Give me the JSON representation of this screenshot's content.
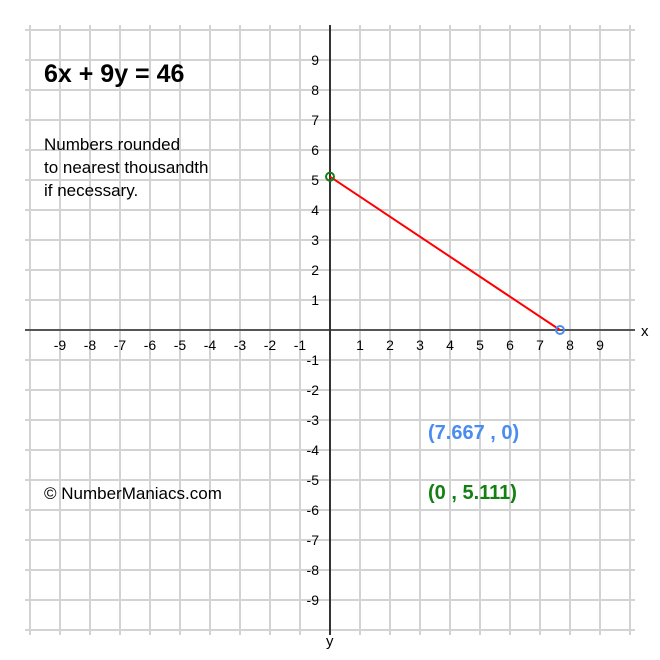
{
  "title": "6x + 9y = 46",
  "note_lines": [
    "Numbers rounded",
    "to nearest thousandth",
    "if necessary."
  ],
  "copyright": "© NumberManiacs.com",
  "chart_data": {
    "type": "line",
    "title": "6x + 9y = 46",
    "xlabel": "x",
    "ylabel": "y",
    "xlim": [
      -10,
      10
    ],
    "ylim": [
      -10,
      10
    ],
    "grid": true,
    "xticks": [
      -9,
      -8,
      -7,
      -6,
      -5,
      -4,
      -3,
      -2,
      -1,
      1,
      2,
      3,
      4,
      5,
      6,
      7,
      8,
      9
    ],
    "yticks": [
      9,
      8,
      7,
      6,
      5,
      4,
      3,
      2,
      1,
      -1,
      -2,
      -3,
      -4,
      -5,
      -6,
      -7,
      -8,
      -9
    ],
    "series": [
      {
        "points": [
          [
            0,
            5.111
          ],
          [
            7.667,
            0
          ]
        ],
        "color": "#ff0000"
      }
    ],
    "intercepts": [
      {
        "x": 7.667,
        "y": 0,
        "label": "(7.667 , 0)",
        "color": "#4a8cf0"
      },
      {
        "x": 0,
        "y": 5.111,
        "label": "(0 , 5.111)",
        "color": "#138013"
      }
    ]
  }
}
